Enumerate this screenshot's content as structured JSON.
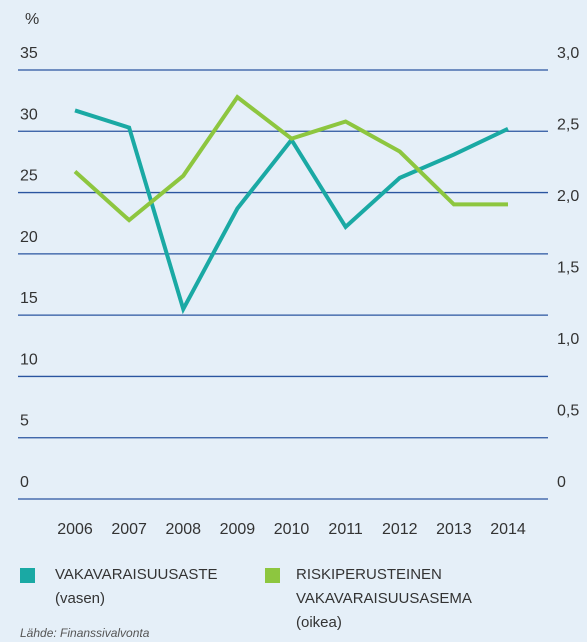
{
  "chart_data": {
    "type": "line",
    "ylabel": "%",
    "categories": [
      "2006",
      "2007",
      "2008",
      "2009",
      "2010",
      "2011",
      "2012",
      "2013",
      "2014"
    ],
    "series": [
      {
        "name": "VAKAVARAISUUSASTE",
        "note": "(vasen)",
        "color": "#1aa9a4",
        "axis": "y",
        "values": [
          31.7,
          30.3,
          15.5,
          23.7,
          29.3,
          22.2,
          26.2,
          28.1,
          30.2
        ]
      },
      {
        "name": "RISKIPERUSTEINEN VAKAVARAISUUSASEMA",
        "note": "(oikea)",
        "color": "#8dc63f",
        "axis": "y2",
        "values": [
          2.29,
          1.95,
          2.26,
          2.81,
          2.52,
          2.64,
          2.43,
          2.06,
          2.06
        ]
      }
    ],
    "ylim": [
      0,
      35
    ],
    "yticks": [
      0,
      5,
      10,
      15,
      20,
      25,
      30,
      35
    ],
    "y2lim": [
      0,
      3.0
    ],
    "y2ticks": [
      0,
      {
        "value": 0.5,
        "label": "0,5"
      },
      {
        "value": 1.0,
        "label": "1,0"
      },
      {
        "value": 1.5,
        "label": "1,5"
      },
      {
        "value": 2.0,
        "label": "2,0"
      },
      {
        "value": 2.5,
        "label": "2,5"
      },
      {
        "value": 3.0,
        "label": "3,0"
      }
    ],
    "grid": true,
    "grid_color": "#2a55a0",
    "source": "Lähde: Finanssivalvonta"
  }
}
